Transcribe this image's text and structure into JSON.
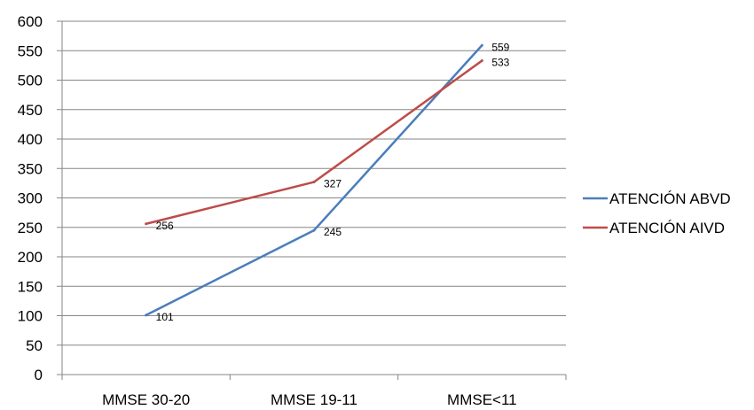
{
  "chart_data": {
    "type": "line",
    "title": "",
    "xlabel": "",
    "ylabel": "",
    "categories": [
      "MMSE 30-20",
      "MMSE 19-11",
      "MMSE<11"
    ],
    "ylim": [
      0,
      600
    ],
    "yticks": [
      0,
      50,
      100,
      150,
      200,
      250,
      300,
      350,
      400,
      450,
      500,
      550,
      600
    ],
    "grid": true,
    "legend_position": "right",
    "series": [
      {
        "name": "ATENCIÓN ABVD",
        "color": "#4a7ebb",
        "values": [
          101,
          245,
          559
        ]
      },
      {
        "name": "ATENCIÓN AIVD",
        "color": "#be4b48",
        "values": [
          256,
          327,
          533
        ]
      }
    ]
  }
}
